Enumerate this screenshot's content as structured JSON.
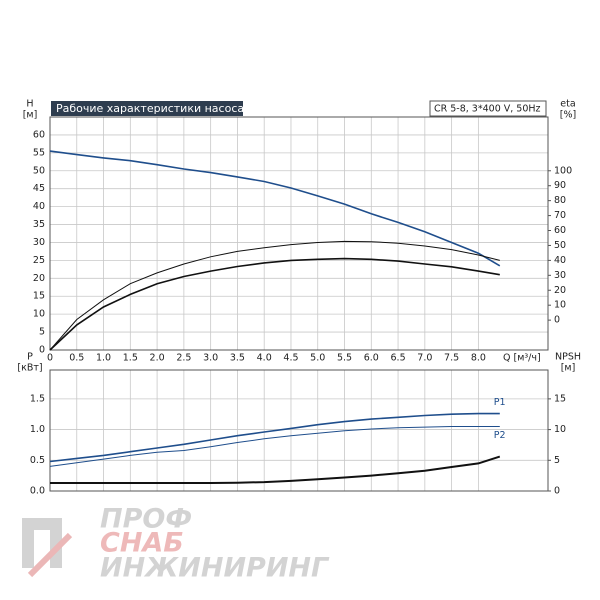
{
  "chart_data": [
    {
      "type": "line",
      "title": "Рабочие характеристики насоса",
      "subtitle": "CR 5-8, 3*400 V, 50Hz",
      "ylabel": "H",
      "yunit": "[м]",
      "y2label": "eta",
      "y2unit": "[%]",
      "xlabel": "Q [м³/ч]",
      "x": [
        0,
        0.5,
        1,
        1.5,
        2,
        2.5,
        3,
        3.5,
        4,
        4.5,
        5,
        5.5,
        6,
        6.5,
        7,
        7.5,
        8,
        8.4
      ],
      "xlim": [
        0,
        9.3
      ],
      "xticks": [
        0,
        0.5,
        {
          "value": 1,
          "label": "1.0"
        },
        1.5,
        {
          "value": 2,
          "label": "2.0"
        },
        2.5,
        {
          "value": 3,
          "label": "3.0"
        },
        3.5,
        {
          "value": 4,
          "label": "4.0"
        },
        4.5,
        {
          "value": 5,
          "label": "5.0"
        },
        5.5,
        {
          "value": 6,
          "label": "6.0"
        },
        6.5,
        {
          "value": 7,
          "label": "7.0"
        },
        7.5,
        {
          "value": 8,
          "label": "8.0"
        }
      ],
      "ylim": [
        0,
        65
      ],
      "yticks": [
        0,
        5,
        10,
        15,
        20,
        25,
        30,
        35,
        40,
        45,
        50,
        55,
        60
      ],
      "y2lim": [
        -20,
        136
      ],
      "y2ticks": [
        0,
        10,
        20,
        30,
        40,
        50,
        60,
        70,
        80,
        90,
        100
      ],
      "grid": true,
      "series": [
        {
          "color": "#1f4e8c",
          "width": 1.6,
          "values": [
            55.5,
            54.5,
            53.6,
            52.8,
            51.7,
            50.5,
            49.5,
            48.3,
            47,
            45.2,
            43,
            40.7,
            38,
            35.6,
            33,
            30,
            27,
            23.5
          ]
        },
        {
          "color": "#111111",
          "width": 1,
          "values": [
            0,
            8.5,
            14,
            18.5,
            21.5,
            24,
            26,
            27.5,
            28.5,
            29.4,
            30,
            30.3,
            30.2,
            29.8,
            29,
            28,
            26.5,
            25
          ]
        },
        {
          "color": "#111111",
          "width": 1.6,
          "values": [
            0,
            7,
            12,
            15.5,
            18.5,
            20.5,
            22,
            23.3,
            24.3,
            25,
            25.3,
            25.5,
            25.3,
            24.8,
            24,
            23.2,
            22,
            21
          ]
        }
      ]
    },
    {
      "type": "line",
      "ylabel": "P",
      "yunit": "[кВт]",
      "y2label": "NPSH",
      "y2unit": "[м]",
      "x": [
        0,
        0.5,
        1,
        1.5,
        2,
        2.5,
        3,
        3.5,
        4,
        4.5,
        5,
        5.5,
        6,
        6.5,
        7,
        7.5,
        8,
        8.4
      ],
      "xlim": [
        0,
        9.3
      ],
      "xticks": [
        0,
        0.5,
        1,
        1.5,
        2,
        2.5,
        3,
        3.5,
        4,
        4.5,
        5,
        5.5,
        6,
        6.5,
        7,
        7.5,
        8
      ],
      "ylim": [
        0,
        1.97
      ],
      "yticks": [
        {
          "value": 0,
          "label": "0.0"
        },
        0.5,
        {
          "value": 1,
          "label": "1.0"
        },
        1.5
      ],
      "y2lim": [
        0,
        19.7
      ],
      "y2ticks": [
        0,
        5,
        10,
        15
      ],
      "grid": true,
      "series": [
        {
          "name": "P1",
          "color": "#1f4e8c",
          "width": 1.6,
          "values": [
            0.48,
            0.53,
            0.58,
            0.64,
            0.7,
            0.76,
            0.83,
            0.9,
            0.96,
            1.02,
            1.08,
            1.13,
            1.17,
            1.2,
            1.23,
            1.25,
            1.26,
            1.26
          ]
        },
        {
          "name": "P2",
          "color": "#1f4e8c",
          "width": 1,
          "values": [
            0.4,
            0.46,
            0.52,
            0.58,
            0.63,
            0.66,
            0.72,
            0.79,
            0.85,
            0.9,
            0.94,
            0.98,
            1.01,
            1.03,
            1.04,
            1.05,
            1.05,
            1.05
          ]
        },
        {
          "color": "#111111",
          "width": 2,
          "axis": "y2",
          "values": [
            1.3,
            1.3,
            1.3,
            1.3,
            1.3,
            1.3,
            1.3,
            1.35,
            1.45,
            1.65,
            1.9,
            2.2,
            2.5,
            2.9,
            3.3,
            3.9,
            4.5,
            5.6
          ]
        }
      ]
    }
  ],
  "watermark": [
    "ПРОФ",
    "СНАБ",
    "ИНЖИНИРИНГ"
  ]
}
